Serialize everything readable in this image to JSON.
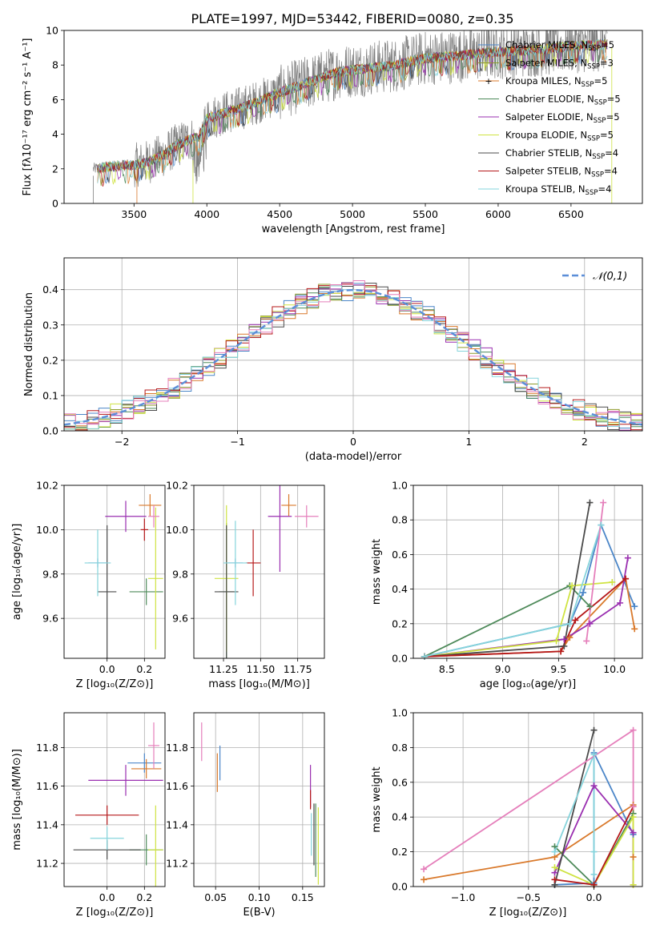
{
  "figure_title": "PLATE=1997, MJD=53442, FIBERID=0080, z=0.35",
  "colors": {
    "Chabrier MILES": "#4b86c8",
    "Salpeter MILES": "#8f9b2b",
    "Kroupa MILES": "#d9792b",
    "Chabrier ELODIE": "#4e8a5a",
    "Salpeter ELODIE": "#9a2fb0",
    "Kroupa ELODIE": "#cfe342",
    "Chabrier STELIB": "#4b4b4b",
    "Salpeter STELIB": "#b5181a",
    "Kroupa STELIB": "#86d4dc",
    "extra": "#e57fbb",
    "normal_curve": "#5b8ed8",
    "spectrum": "#7f7f7f"
  },
  "chart_data": [
    {
      "id": "spectrum",
      "type": "line",
      "title": "",
      "xlabel": "wavelength [Angstrom, rest frame]",
      "ylabel": "Flux [fλ10⁻¹⁷ erg cm⁻² s⁻¹ A⁻¹]",
      "xlim": [
        3020,
        6990
      ],
      "ylim": [
        0,
        10
      ],
      "xticks": [
        3500,
        4000,
        4500,
        5000,
        5500,
        6000,
        6500
      ],
      "yticks": [
        0,
        2,
        4,
        6,
        8,
        10
      ],
      "legend_position": "right",
      "legend": [
        "Chabrier MILES, N_SSP=5",
        "Salpeter MILES, N_SSP=3",
        "Kroupa MILES, N_SSP=5",
        "Chabrier ELODIE, N_SSP=5",
        "Salpeter ELODIE, N_SSP=5",
        "Kroupa ELODIE, N_SSP=5",
        "Chabrier STELIB, N_SSP=4",
        "Salpeter STELIB, N_SSP=4",
        "Kroupa STELIB, N_SSP=4"
      ],
      "continuum_wavelength": [
        3220,
        3400,
        3500,
        3600,
        3700,
        3800,
        3950,
        4000,
        4150,
        4300,
        4500,
        4700,
        4900,
        5100,
        5300,
        5500,
        5700,
        5900,
        6100,
        6300,
        6500,
        6750
      ],
      "continuum_flux": [
        2.0,
        2.2,
        2.2,
        2.4,
        2.8,
        3.4,
        3.9,
        4.9,
        5.3,
        5.7,
        6.4,
        7.0,
        7.6,
        7.8,
        8.0,
        8.4,
        8.5,
        8.7,
        8.8,
        8.9,
        9.1,
        9.2
      ]
    },
    {
      "id": "residuals",
      "type": "line",
      "title": "",
      "xlabel": "(data-model)/error",
      "ylabel": "Normed distribution",
      "xlim": [
        -2.5,
        2.5
      ],
      "ylim": [
        0,
        0.49
      ],
      "xticks": [
        -2,
        -1,
        0,
        1,
        2
      ],
      "yticks": [
        0.0,
        0.1,
        0.2,
        0.3,
        0.4
      ],
      "legend_position": "top-right",
      "legend": [
        "𝒩(0,1)"
      ],
      "normal_mean": 0,
      "normal_sigma": 1,
      "bin_width": 0.1
    },
    {
      "id": "age_vs_Z",
      "type": "scatter",
      "xlabel": "Z [log₁₀(Z/Z⊙)]",
      "ylabel": "age  [log₁₀(age/yr)]",
      "xlim": [
        -0.23,
        0.31
      ],
      "ylim": [
        9.42,
        10.2
      ],
      "xticks": [
        0.0,
        0.2
      ],
      "yticks": [
        9.6,
        9.8,
        10.0,
        10.2
      ],
      "points": [
        {
          "model": "Chabrier MILES",
          "x": -0.05,
          "y": 9.85,
          "ex": 0.05,
          "ey": 0.02
        },
        {
          "model": "Kroupa MILES",
          "x": 0.23,
          "y": 10.11,
          "ex": 0.06,
          "ey": 0.05
        },
        {
          "model": "Chabrier ELODIE",
          "x": 0.21,
          "y": 9.72,
          "ex": 0.09,
          "ey": 0.06
        },
        {
          "model": "Salpeter ELODIE",
          "x": 0.1,
          "y": 10.06,
          "ex": 0.11,
          "ey": 0.07
        },
        {
          "model": "Kroupa ELODIE",
          "x": 0.26,
          "y": 9.78,
          "ex": 0.04,
          "ey": 0.32
        },
        {
          "model": "Chabrier STELIB",
          "x": 0.0,
          "y": 9.72,
          "ex": 0.05,
          "ey": 0.3
        },
        {
          "model": "Salpeter STELIB",
          "x": 0.2,
          "y": 10.0,
          "ex": 0.02,
          "ey": 0.05
        },
        {
          "model": "Kroupa STELIB",
          "x": -0.05,
          "y": 9.85,
          "ex": 0.07,
          "ey": 0.15
        },
        {
          "model": "extra",
          "x": 0.25,
          "y": 10.06,
          "ex": 0.03,
          "ey": 0.05
        }
      ]
    },
    {
      "id": "age_vs_mass",
      "type": "scatter",
      "xlabel": "mass [log₁₀(M/M⊙)]",
      "ylabel": "",
      "xlim": [
        11.05,
        11.93
      ],
      "ylim": [
        9.42,
        10.2
      ],
      "xticks": [
        11.25,
        11.5,
        11.75
      ],
      "yticks": [
        9.6,
        9.8,
        10.0,
        10.2
      ],
      "points": [
        {
          "model": "Chabrier MILES",
          "x": 11.33,
          "y": 9.85,
          "ex": 0.05,
          "ey": 0.02
        },
        {
          "model": "Kroupa MILES",
          "x": 11.69,
          "y": 10.11,
          "ex": 0.05,
          "ey": 0.05
        },
        {
          "model": "Chabrier ELODIE",
          "x": 11.27,
          "y": 9.72,
          "ex": 0.05,
          "ey": 0.31
        },
        {
          "model": "Salpeter ELODIE",
          "x": 11.63,
          "y": 10.06,
          "ex": 0.08,
          "ey": 0.25
        },
        {
          "model": "Kroupa ELODIE",
          "x": 11.27,
          "y": 9.78,
          "ex": 0.08,
          "ey": 0.33
        },
        {
          "model": "Chabrier STELIB",
          "x": 11.27,
          "y": 9.72,
          "ex": 0.08,
          "ey": 0.3
        },
        {
          "model": "Salpeter STELIB",
          "x": 11.45,
          "y": 9.85,
          "ex": 0.05,
          "ey": 0.15
        },
        {
          "model": "Kroupa STELIB",
          "x": 11.33,
          "y": 9.85,
          "ex": 0.08,
          "ey": 0.19
        },
        {
          "model": "extra",
          "x": 11.81,
          "y": 10.06,
          "ex": 0.08,
          "ey": 0.05
        }
      ]
    },
    {
      "id": "weight_vs_age",
      "type": "line",
      "xlabel": "age  [log₁₀(age/yr)]",
      "ylabel": "mass weight",
      "xlim": [
        8.2,
        10.25
      ],
      "ylim": [
        0,
        1.0
      ],
      "xticks": [
        8.5,
        9.0,
        9.5,
        10.0
      ],
      "yticks": [
        0.0,
        0.2,
        0.4,
        0.6,
        0.8,
        1.0
      ],
      "series": [
        {
          "model": "Chabrier MILES",
          "x": [
            8.3,
            9.6,
            9.72,
            9.88,
            10.18
          ],
          "y": [
            0.01,
            0.2,
            0.38,
            0.77,
            0.3
          ]
        },
        {
          "model": "Kroupa MILES",
          "x": [
            8.3,
            9.52,
            9.6,
            10.1,
            10.18
          ],
          "y": [
            0.01,
            0.04,
            0.12,
            0.46,
            0.17
          ]
        },
        {
          "model": "Chabrier ELODIE",
          "x": [
            8.3,
            9.6,
            9.78
          ],
          "y": [
            0.01,
            0.42,
            0.3
          ]
        },
        {
          "model": "Salpeter ELODIE",
          "x": [
            8.3,
            9.55,
            9.78,
            10.05,
            10.12
          ],
          "y": [
            0.01,
            0.11,
            0.2,
            0.32,
            0.58
          ]
        },
        {
          "model": "Kroupa ELODIE",
          "x": [
            8.3,
            9.48,
            9.62,
            9.98
          ],
          "y": [
            0.01,
            0.1,
            0.42,
            0.44
          ]
        },
        {
          "model": "Chabrier STELIB",
          "x": [
            8.3,
            9.55,
            9.78
          ],
          "y": [
            0.01,
            0.07,
            0.9
          ]
        },
        {
          "model": "Salpeter STELIB",
          "x": [
            8.3,
            9.52,
            9.65,
            10.1
          ],
          "y": [
            0.01,
            0.04,
            0.22,
            0.46
          ]
        },
        {
          "model": "Kroupa STELIB",
          "x": [
            8.3,
            9.6,
            9.88
          ],
          "y": [
            0.01,
            0.2,
            0.77
          ]
        },
        {
          "model": "extra",
          "x": [
            9.75,
            9.9
          ],
          "y": [
            0.1,
            0.9
          ]
        }
      ]
    },
    {
      "id": "mass_vs_Z",
      "type": "scatter",
      "xlabel": "Z [log₁₀(Z/Z⊙)]",
      "ylabel": "mass [log₁₀(M/M⊙)]",
      "xlim": [
        -0.23,
        0.31
      ],
      "ylim": [
        11.08,
        11.98
      ],
      "xticks": [
        0.0,
        0.2
      ],
      "yticks": [
        11.2,
        11.4,
        11.6,
        11.8
      ],
      "points": [
        {
          "model": "Chabrier MILES",
          "x": 0.2,
          "y": 11.72,
          "ex": 0.09,
          "ey": 0.05
        },
        {
          "model": "Kroupa MILES",
          "x": 0.21,
          "y": 11.69,
          "ex": 0.08,
          "ey": 0.05
        },
        {
          "model": "Chabrier ELODIE",
          "x": 0.21,
          "y": 11.27,
          "ex": 0.09,
          "ey": 0.08
        },
        {
          "model": "Salpeter ELODIE",
          "x": 0.1,
          "y": 11.63,
          "ex": 0.2,
          "ey": 0.08
        },
        {
          "model": "Kroupa ELODIE",
          "x": 0.26,
          "y": 11.27,
          "ex": 0.04,
          "ey": 0.23
        },
        {
          "model": "Chabrier STELIB",
          "x": 0.0,
          "y": 11.27,
          "ex": 0.18,
          "ey": 0.05
        },
        {
          "model": "Salpeter STELIB",
          "x": 0.0,
          "y": 11.45,
          "ex": 0.17,
          "ey": 0.05
        },
        {
          "model": "Kroupa STELIB",
          "x": 0.0,
          "y": 11.33,
          "ex": 0.09,
          "ey": 0.06
        },
        {
          "model": "extra",
          "x": 0.25,
          "y": 11.81,
          "ex": 0.03,
          "ey": 0.12
        }
      ]
    },
    {
      "id": "mass_vs_ebv",
      "type": "scatter",
      "xlabel": "E(B-V)",
      "ylabel": "",
      "xlim": [
        0.025,
        0.175
      ],
      "ylim": [
        11.08,
        11.98
      ],
      "xticks": [
        0.05,
        0.1,
        0.15
      ],
      "yticks": [
        11.2,
        11.4,
        11.6,
        11.8
      ],
      "points": [
        {
          "model": "Chabrier MILES",
          "x": 0.055,
          "y": 11.72,
          "ex": 0,
          "ey": 0.09
        },
        {
          "model": "Kroupa MILES",
          "x": 0.052,
          "y": 11.67,
          "ex": 0,
          "ey": 0.1
        },
        {
          "model": "Chabrier ELODIE",
          "x": 0.165,
          "y": 11.32,
          "ex": 0,
          "ey": 0.19
        },
        {
          "model": "Salpeter ELODIE",
          "x": 0.159,
          "y": 11.6,
          "ex": 0,
          "ey": 0.11
        },
        {
          "model": "Kroupa ELODIE",
          "x": 0.168,
          "y": 11.29,
          "ex": 0,
          "ey": 0.2
        },
        {
          "model": "Chabrier STELIB",
          "x": 0.163,
          "y": 11.35,
          "ex": 0,
          "ey": 0.16
        },
        {
          "model": "Salpeter STELIB",
          "x": 0.159,
          "y": 11.53,
          "ex": 0,
          "ey": 0.05
        },
        {
          "model": "Kroupa STELIB",
          "x": 0.16,
          "y": 11.35,
          "ex": 0,
          "ey": 0.11
        },
        {
          "model": "extra",
          "x": 0.034,
          "y": 11.83,
          "ex": 0,
          "ey": 0.1
        }
      ]
    },
    {
      "id": "weight_vs_Z",
      "type": "line",
      "xlabel": "Z [log₁₀(Z/Z⊙)]",
      "ylabel": "mass weight",
      "xlim": [
        -1.38,
        0.37
      ],
      "ylim": [
        0,
        1.0
      ],
      "xticks": [
        -1.0,
        -0.5,
        0.0
      ],
      "yticks": [
        0.0,
        0.2,
        0.4,
        0.6,
        0.8,
        1.0
      ],
      "series": [
        {
          "model": "Chabrier MILES",
          "x": [
            -0.3,
            0.0,
            0.0,
            0.3
          ],
          "y": [
            0.01,
            0.02,
            0.77,
            0.3
          ]
        },
        {
          "model": "Kroupa MILES",
          "x": [
            -1.3,
            -0.3,
            0.3,
            0.3
          ],
          "y": [
            0.04,
            0.17,
            0.47,
            0.17
          ]
        },
        {
          "model": "Chabrier ELODIE",
          "x": [
            -0.3,
            0.0,
            0.3
          ],
          "y": [
            0.23,
            0.01,
            0.42
          ]
        },
        {
          "model": "Salpeter ELODIE",
          "x": [
            -0.3,
            0.0,
            0.3,
            0.3
          ],
          "y": [
            0.08,
            0.58,
            0.31,
            0.01
          ]
        },
        {
          "model": "Kroupa ELODIE",
          "x": [
            -0.3,
            0.0,
            0.3,
            0.3
          ],
          "y": [
            0.11,
            0.01,
            0.4,
            0.01
          ]
        },
        {
          "model": "Chabrier STELIB",
          "x": [
            -0.3,
            0.0
          ],
          "y": [
            0.01,
            0.9
          ]
        },
        {
          "model": "Salpeter STELIB",
          "x": [
            -0.3,
            0.0,
            0.3
          ],
          "y": [
            0.04,
            0.01,
            0.46
          ]
        },
        {
          "model": "Kroupa STELIB",
          "x": [
            -0.3,
            0.0,
            0.0,
            0.0
          ],
          "y": [
            0.2,
            0.76,
            0.2,
            0.07
          ]
        },
        {
          "model": "extra",
          "x": [
            -1.3,
            0.3,
            0.3
          ],
          "y": [
            0.1,
            0.9,
            0.46
          ]
        }
      ]
    }
  ]
}
